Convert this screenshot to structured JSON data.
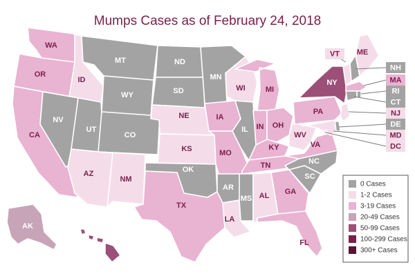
{
  "title": "Mumps Cases as of February 24, 2018",
  "colors": {
    "0 Cases": "#a3a3a3",
    "1-2 Cases": "#f4dde9",
    "3-19 Cases": "#e9b3d2",
    "20-49 Cases": "#c7a4b8",
    "50-99 Cases": "#9c4f77",
    "100-299 Cases": "#7b1f4a",
    "300+ Cases": "#5a1433",
    "dark_label": "#4a4a4a",
    "light_label": "#ffffff",
    "accent_label": "#7b1f4a"
  },
  "legend": [
    {
      "label": "0 Cases",
      "color_key": "0 Cases"
    },
    {
      "label": "1-2 Cases",
      "color_key": "1-2 Cases"
    },
    {
      "label": "3-19 Cases",
      "color_key": "3-19 Cases"
    },
    {
      "label": "20-49 Cases",
      "color_key": "20-49 Cases"
    },
    {
      "label": "50-99 Cases",
      "color_key": "50-99 Cases"
    },
    {
      "label": "100-299 Cases",
      "color_key": "100-299 Cases"
    },
    {
      "label": "300+ Cases",
      "color_key": "300+ Cases"
    }
  ],
  "states": [
    {
      "abbr": "WA",
      "category": "3-19 Cases"
    },
    {
      "abbr": "OR",
      "category": "3-19 Cases"
    },
    {
      "abbr": "CA",
      "category": "3-19 Cases"
    },
    {
      "abbr": "ID",
      "category": "1-2 Cases"
    },
    {
      "abbr": "NV",
      "category": "0 Cases"
    },
    {
      "abbr": "UT",
      "category": "0 Cases"
    },
    {
      "abbr": "AZ",
      "category": "1-2 Cases"
    },
    {
      "abbr": "MT",
      "category": "0 Cases"
    },
    {
      "abbr": "WY",
      "category": "0 Cases"
    },
    {
      "abbr": "CO",
      "category": "0 Cases"
    },
    {
      "abbr": "NM",
      "category": "1-2 Cases"
    },
    {
      "abbr": "ND",
      "category": "0 Cases"
    },
    {
      "abbr": "SD",
      "category": "0 Cases"
    },
    {
      "abbr": "NE",
      "category": "1-2 Cases"
    },
    {
      "abbr": "KS",
      "category": "1-2 Cases"
    },
    {
      "abbr": "OK",
      "category": "0 Cases"
    },
    {
      "abbr": "TX",
      "category": "3-19 Cases"
    },
    {
      "abbr": "MN",
      "category": "0 Cases"
    },
    {
      "abbr": "IA",
      "category": "3-19 Cases"
    },
    {
      "abbr": "MO",
      "category": "3-19 Cases"
    },
    {
      "abbr": "AR",
      "category": "0 Cases"
    },
    {
      "abbr": "LA",
      "category": "1-2 Cases"
    },
    {
      "abbr": "WI",
      "category": "1-2 Cases"
    },
    {
      "abbr": "IL",
      "category": "0 Cases"
    },
    {
      "abbr": "MI",
      "category": "3-19 Cases"
    },
    {
      "abbr": "IN",
      "category": "3-19 Cases"
    },
    {
      "abbr": "OH",
      "category": "3-19 Cases"
    },
    {
      "abbr": "KY",
      "category": "3-19 Cases"
    },
    {
      "abbr": "TN",
      "category": "3-19 Cases"
    },
    {
      "abbr": "MS",
      "category": "0 Cases"
    },
    {
      "abbr": "AL",
      "category": "1-2 Cases"
    },
    {
      "abbr": "GA",
      "category": "3-19 Cases"
    },
    {
      "abbr": "FL",
      "category": "3-19 Cases"
    },
    {
      "abbr": "SC",
      "category": "0 Cases"
    },
    {
      "abbr": "NC",
      "category": "0 Cases"
    },
    {
      "abbr": "VA",
      "category": "3-19 Cases"
    },
    {
      "abbr": "WV",
      "category": "1-2 Cases"
    },
    {
      "abbr": "PA",
      "category": "3-19 Cases"
    },
    {
      "abbr": "NY",
      "category": "50-99 Cases"
    },
    {
      "abbr": "VT",
      "category": "1-2 Cases"
    },
    {
      "abbr": "ME",
      "category": "1-2 Cases"
    },
    {
      "abbr": "NH",
      "category": "0 Cases"
    },
    {
      "abbr": "MA",
      "category": "3-19 Cases"
    },
    {
      "abbr": "RI",
      "category": "0 Cases"
    },
    {
      "abbr": "CT",
      "category": "0 Cases"
    },
    {
      "abbr": "NJ",
      "category": "1-2 Cases"
    },
    {
      "abbr": "DE",
      "category": "0 Cases"
    },
    {
      "abbr": "MD",
      "category": "1-2 Cases"
    },
    {
      "abbr": "DC",
      "category": "1-2 Cases"
    },
    {
      "abbr": "AK",
      "category": "20-49 Cases"
    },
    {
      "abbr": "HI",
      "category": "50-99 Cases"
    }
  ]
}
